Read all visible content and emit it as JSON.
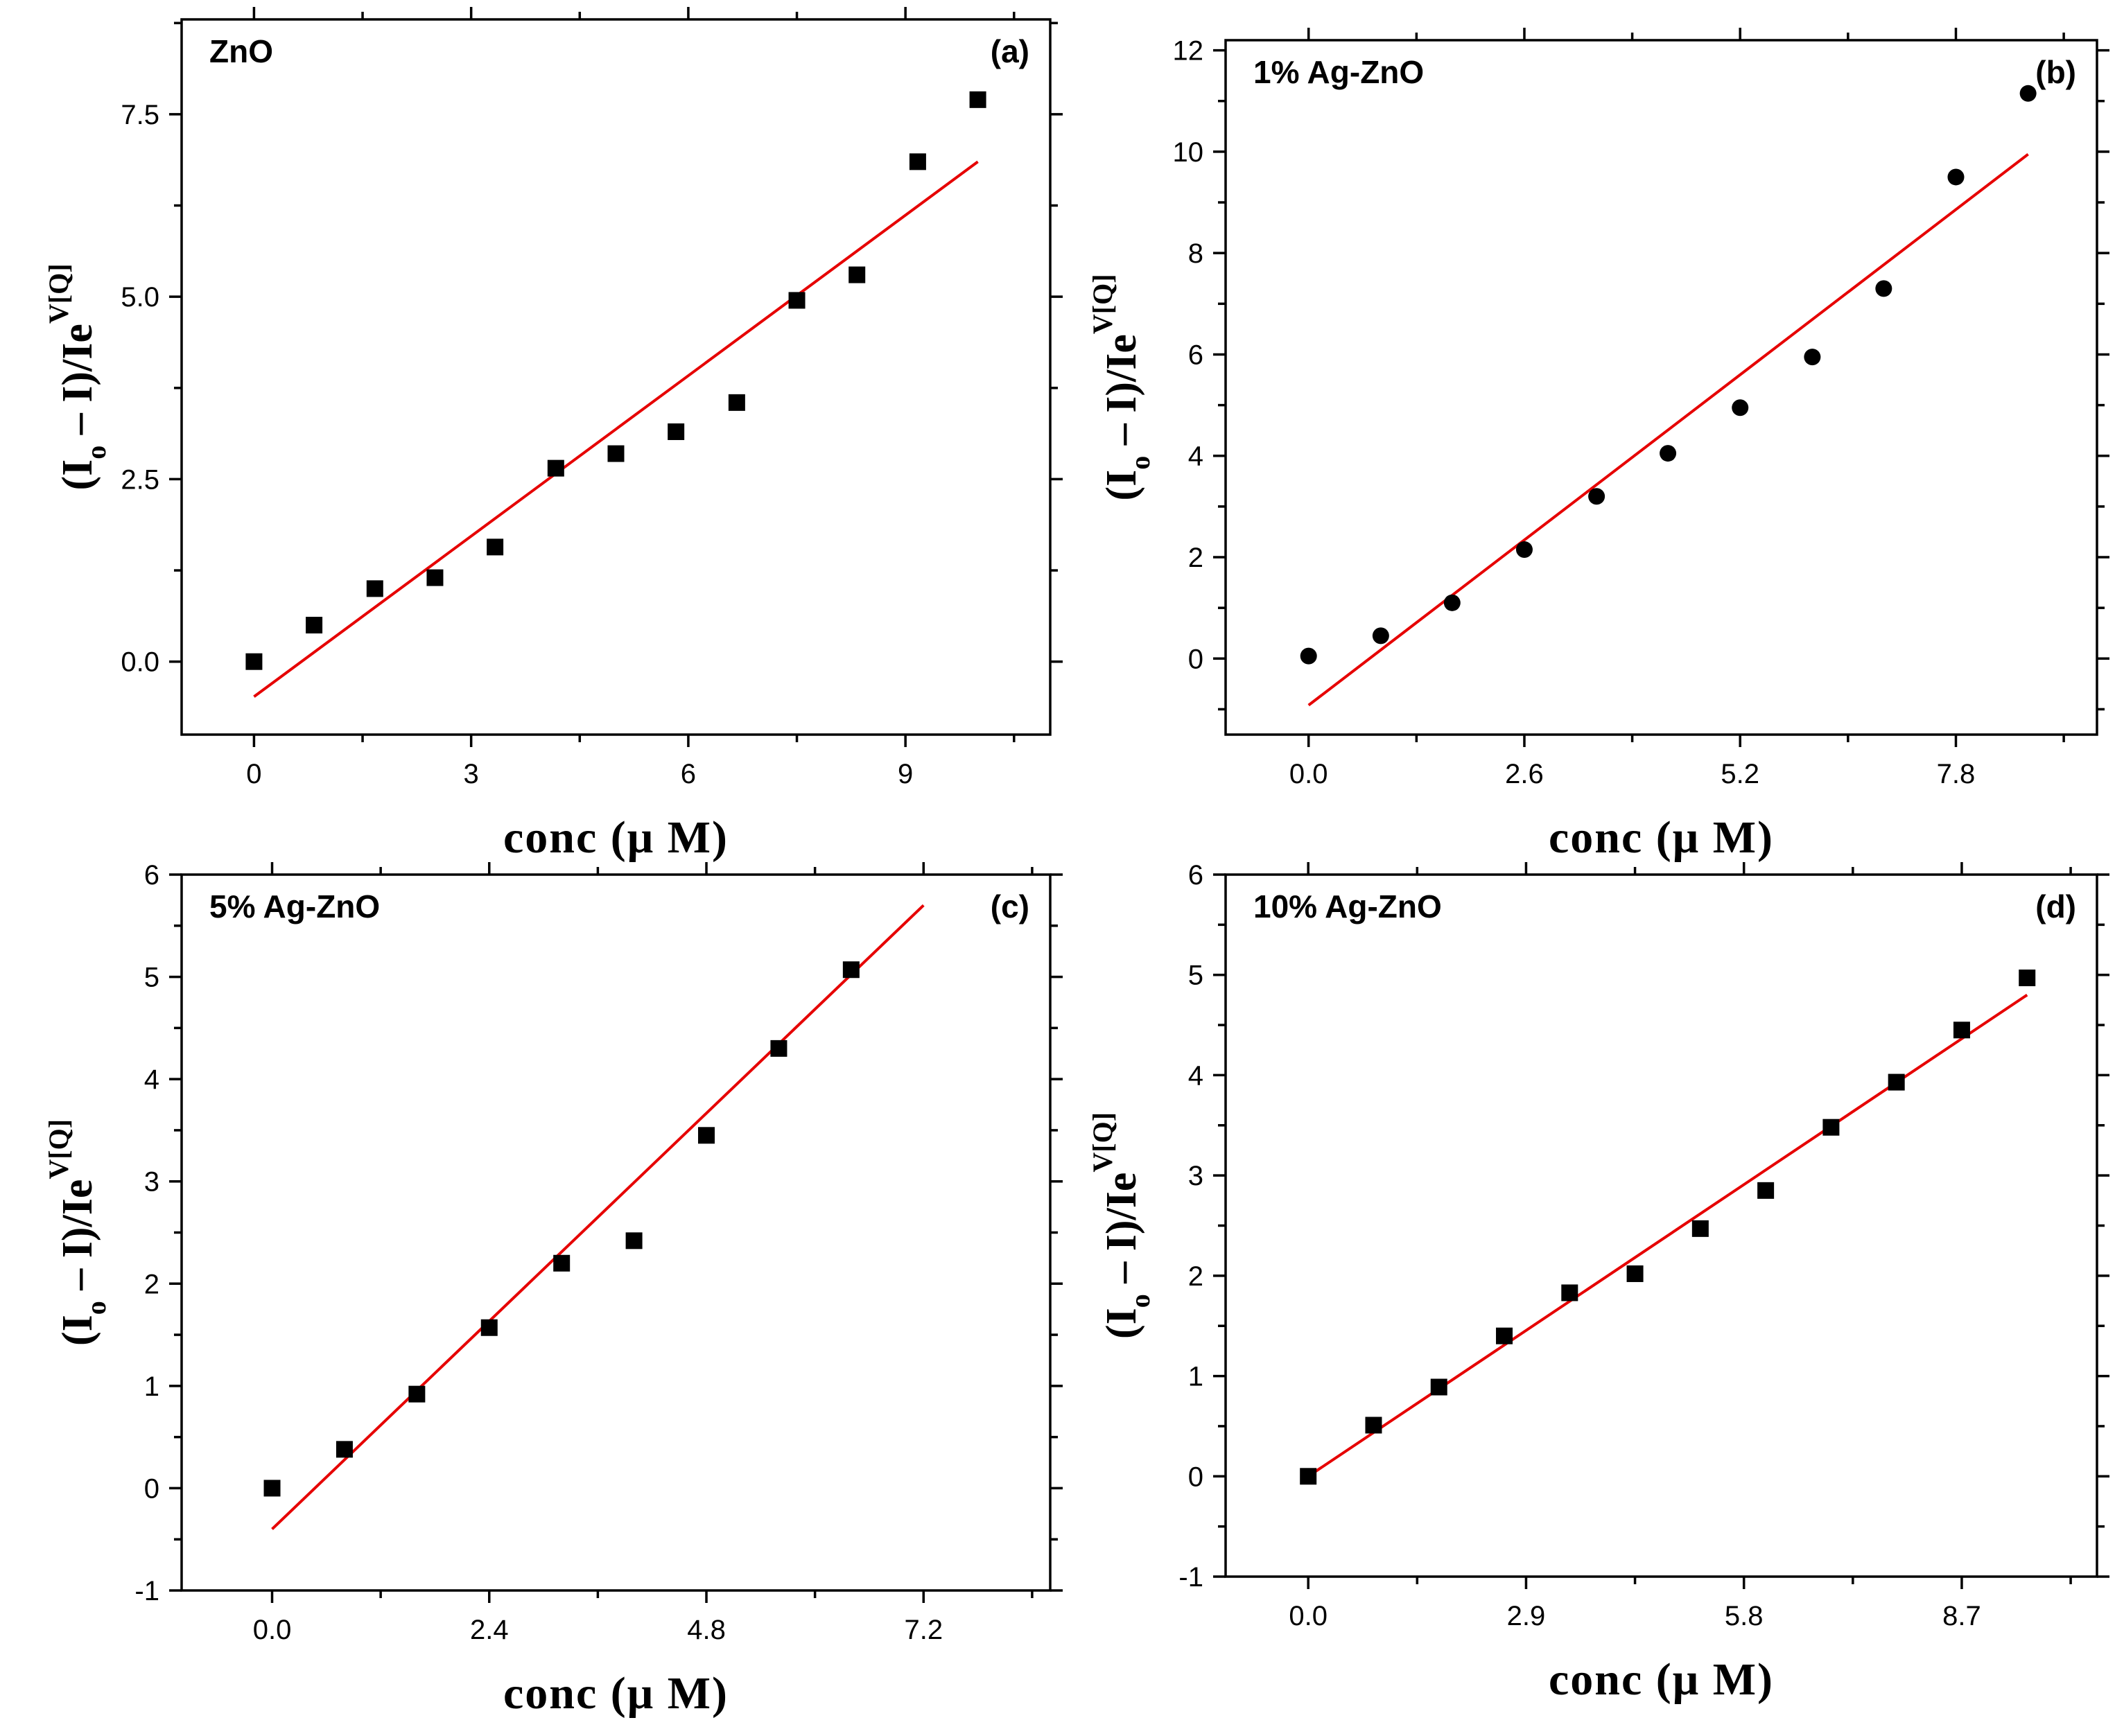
{
  "chart_data": [
    {
      "panel": "a",
      "type": "scatter",
      "title": "ZnO",
      "panel_label": "(a)",
      "xlabel": "conc (μ M)",
      "ylabel": {
        "main": "(I",
        "sub": "o",
        "mid": " – I)/Ie",
        "sup": "V[Q]"
      },
      "xlim": [
        -1,
        11
      ],
      "ylim": [
        -1,
        8.8
      ],
      "xticks": [
        0,
        3,
        6,
        9
      ],
      "xtick_labels": [
        "0",
        "3",
        "6",
        "9"
      ],
      "yticks": [
        0,
        2.5,
        5,
        7.5
      ],
      "ytick_labels": [
        "0.0",
        "2.5",
        "5.0",
        "7.5"
      ],
      "marker": "square",
      "series": [
        {
          "name": "data",
          "x": [
            0,
            0.83,
            1.67,
            2.5,
            3.33,
            4.17,
            5.0,
            5.83,
            6.67,
            7.5,
            8.33,
            9.17,
            10.0
          ],
          "y": [
            0.0,
            0.5,
            1.0,
            1.15,
            1.57,
            2.65,
            2.85,
            3.15,
            3.55,
            4.95,
            5.3,
            6.85,
            7.7
          ]
        }
      ],
      "fit": {
        "x": [
          0,
          10.0
        ],
        "y": [
          -0.48,
          6.85
        ]
      }
    },
    {
      "panel": "b",
      "type": "scatter",
      "title": "1% Ag-ZnO",
      "panel_label": "(b)",
      "xlabel": "conc (μ M)",
      "ylabel": {
        "main": "(I",
        "sub": "o",
        "mid": " – I)/Ie",
        "sup": "V[Q]"
      },
      "xlim": [
        -1.0,
        9.5
      ],
      "ylim": [
        -1.5,
        12.2
      ],
      "xticks": [
        0,
        2.6,
        5.2,
        7.8
      ],
      "xtick_labels": [
        "0.0",
        "2.6",
        "5.2",
        "7.8"
      ],
      "yticks": [
        0,
        2,
        4,
        6,
        8,
        10,
        12
      ],
      "ytick_labels": [
        "0",
        "2",
        "4",
        "6",
        "8",
        "10",
        "12"
      ],
      "marker": "circle",
      "series": [
        {
          "name": "data",
          "x": [
            0,
            0.87,
            1.73,
            2.6,
            3.47,
            4.33,
            5.2,
            6.07,
            6.93,
            7.8,
            8.67
          ],
          "y": [
            0.05,
            0.45,
            1.1,
            2.15,
            3.2,
            4.05,
            4.95,
            5.95,
            7.3,
            9.5,
            11.15
          ]
        }
      ],
      "fit": {
        "x": [
          0,
          8.67
        ],
        "y": [
          -0.92,
          9.95
        ]
      }
    },
    {
      "panel": "c",
      "type": "scatter",
      "title": "5% Ag-ZnO",
      "panel_label": "(c)",
      "xlabel": "conc (μ M)",
      "ylabel": {
        "main": "(I",
        "sub": "o",
        "mid": " – I)/Ie",
        "sup": "V[Q]"
      },
      "xlim": [
        -1.0,
        8.6
      ],
      "ylim": [
        -1,
        6
      ],
      "xticks": [
        0,
        2.4,
        4.8,
        7.2
      ],
      "xtick_labels": [
        "0.0",
        "2.4",
        "4.8",
        "7.2"
      ],
      "yticks": [
        -1,
        0,
        1,
        2,
        3,
        4,
        5,
        6
      ],
      "ytick_labels": [
        "-1",
        "0",
        "1",
        "2",
        "3",
        "4",
        "5",
        "6"
      ],
      "marker": "square",
      "series": [
        {
          "name": "data",
          "x": [
            0,
            0.8,
            1.6,
            2.4,
            3.2,
            4.0,
            4.8,
            5.6,
            6.4
          ],
          "y": [
            0.0,
            0.38,
            0.92,
            1.57,
            2.2,
            2.42,
            3.45,
            4.3,
            5.07
          ]
        }
      ],
      "fit": {
        "x": [
          0,
          7.2
        ],
        "y": [
          -0.4,
          5.7
        ]
      }
    },
    {
      "panel": "d",
      "type": "scatter",
      "title": "10% Ag-ZnO",
      "panel_label": "(d)",
      "xlabel": "conc (μ M)",
      "ylabel": {
        "main": "(I",
        "sub": "o",
        "mid": " – I)/Ie",
        "sup": "V[Q]"
      },
      "xlim": [
        -1.1,
        10.5
      ],
      "ylim": [
        -1,
        6
      ],
      "xticks": [
        0,
        2.9,
        5.8,
        8.7
      ],
      "xtick_labels": [
        "0.0",
        "2.9",
        "5.8",
        "8.7"
      ],
      "yticks": [
        -1,
        0,
        1,
        2,
        3,
        4,
        5,
        6
      ],
      "ytick_labels": [
        "-1",
        "0",
        "1",
        "2",
        "3",
        "4",
        "5",
        "6"
      ],
      "marker": "square",
      "series": [
        {
          "name": "data",
          "x": [
            0,
            0.87,
            1.74,
            2.61,
            3.48,
            4.35,
            5.22,
            6.09,
            6.96,
            7.83,
            8.7,
            9.57
          ],
          "y": [
            0.0,
            0.51,
            0.89,
            1.4,
            1.83,
            2.02,
            2.47,
            2.85,
            3.48,
            3.93,
            4.45,
            4.97
          ]
        }
      ],
      "fit": {
        "x": [
          0,
          9.57
        ],
        "y": [
          0.0,
          4.8
        ]
      }
    }
  ]
}
